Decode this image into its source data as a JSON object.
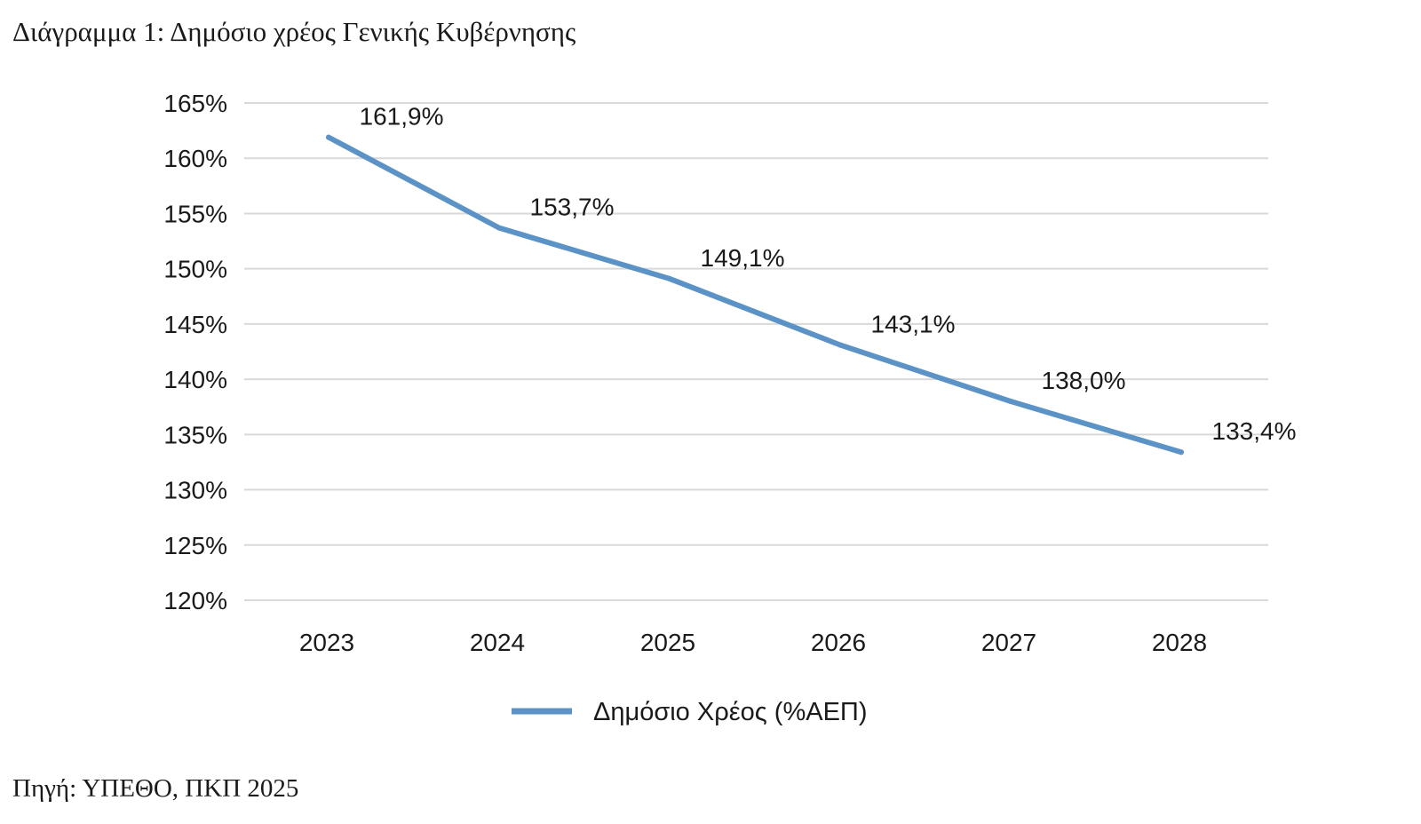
{
  "caption": {
    "title": "Διάγραμμα 1: Δημόσιο χρέος Γενικής Κυβέρνησης",
    "source": "Πηγή: ΥΠΕΘΟ, ΠΚΠ 2025"
  },
  "chart_data": {
    "type": "line",
    "categories": [
      "2023",
      "2024",
      "2025",
      "2026",
      "2027",
      "2028"
    ],
    "series": [
      {
        "name": "Δημόσιο Χρέος (%ΑΕΠ)",
        "values": [
          161.9,
          153.7,
          149.1,
          143.1,
          138.0,
          133.4
        ],
        "data_labels": [
          "161,9%",
          "153,7%",
          "149,1%",
          "143,1%",
          "138,0%",
          "133,4%"
        ],
        "color": "#5b93c7"
      }
    ],
    "ylim": [
      120,
      165
    ],
    "y_ticks": [
      120,
      125,
      130,
      135,
      140,
      145,
      150,
      155,
      160,
      165
    ],
    "y_tick_labels": [
      "120%",
      "125%",
      "130%",
      "135%",
      "140%",
      "145%",
      "150%",
      "155%",
      "160%",
      "165%"
    ],
    "grid": true,
    "legend_position": "bottom"
  },
  "colors": {
    "line": "#5b93c7",
    "grid": "#d9d9d9",
    "text": "#1a1a1a"
  }
}
